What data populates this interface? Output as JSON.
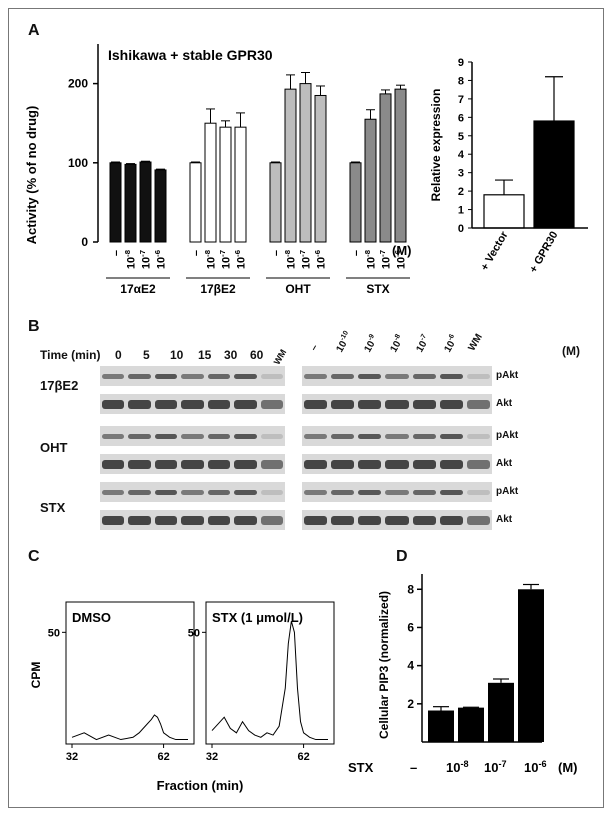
{
  "panelA": {
    "letter": "A",
    "title": "Ishikawa + stable GPR30",
    "ylabel": "Activity (% of no drug)",
    "yticks": [
      "0",
      "100",
      "200"
    ],
    "unit": "(M)",
    "xticks": [
      "–",
      "10-8",
      "10-7",
      "10-6"
    ],
    "inset": {
      "ylabel": "Relative expression",
      "yticks": [
        "0",
        "1",
        "2",
        "3",
        "4",
        "5",
        "6",
        "7",
        "8",
        "9"
      ],
      "categories": [
        "+ Vector",
        "+ GPR30"
      ]
    }
  },
  "panelB": {
    "letter": "B",
    "time_label": "Time (min)",
    "times": [
      "0",
      "5",
      "10",
      "15",
      "30",
      "60",
      "WM"
    ],
    "conc_labels": [
      "–",
      "10-10",
      "10-9",
      "10-8",
      "10-7",
      "10-6",
      "WM"
    ],
    "unit": "(M)",
    "rows": [
      "17βE2",
      "OHT",
      "STX"
    ],
    "band_labels": [
      "pAkt",
      "Akt"
    ]
  },
  "panelC": {
    "letter": "C",
    "ylabel": "CPM",
    "xlabel": "Fraction (min)",
    "left_title": "DMSO",
    "right_title": "STX (1 μmol/L)",
    "yticks": [
      "50"
    ],
    "xticks": [
      "32",
      "62"
    ]
  },
  "panelD": {
    "letter": "D",
    "ylabel": "Cellular PIP3 (normalized)",
    "yticks": [
      "2",
      "4",
      "6",
      "8"
    ],
    "row_label": "STX",
    "categories": [
      "–",
      "10-8",
      "10-7",
      "10-6"
    ],
    "unit": "(M)"
  },
  "chart_data": [
    {
      "type": "bar",
      "title": "Ishikawa + stable GPR30",
      "ylabel": "Activity (% of no drug)",
      "ylim": [
        0,
        250
      ],
      "groups": [
        {
          "name": "17αE2",
          "color": "#111111",
          "values": [
            100,
            98,
            101,
            91
          ],
          "errors": [
            1,
            1,
            1,
            1
          ]
        },
        {
          "name": "17βE2",
          "color": "#ffffff",
          "values": [
            100,
            150,
            145,
            145
          ],
          "errors": [
            1,
            18,
            8,
            18
          ]
        },
        {
          "name": "OHT",
          "color": "#bdbdbd",
          "values": [
            100,
            193,
            200,
            185
          ],
          "errors": [
            1,
            18,
            14,
            12
          ]
        },
        {
          "name": "STX",
          "color": "#8a8a8a",
          "values": [
            100,
            155,
            187,
            193
          ],
          "errors": [
            1,
            12,
            5,
            5
          ]
        }
      ],
      "categories": [
        "–",
        "10-8",
        "10-7",
        "10-6"
      ]
    },
    {
      "type": "bar",
      "ylabel": "Relative expression",
      "ylim": [
        0,
        9
      ],
      "categories": [
        "+ Vector",
        "+ GPR30"
      ],
      "values": [
        1.8,
        5.8
      ],
      "errors": [
        0.8,
        2.4
      ],
      "colors": [
        "#ffffff",
        "#000000"
      ]
    },
    {
      "type": "bar",
      "ylabel": "Cellular PIP3 (normalized)",
      "ylim": [
        0,
        8.8
      ],
      "categories": [
        "–",
        "10-8",
        "10-7",
        "10-6"
      ],
      "values": [
        1.65,
        1.8,
        3.1,
        8.0
      ],
      "errors": [
        0.2,
        0.02,
        0.2,
        0.25
      ]
    },
    {
      "type": "line",
      "ylabel": "CPM",
      "xlabel": "Fraction (min)",
      "series": [
        {
          "name": "DMSO",
          "x": [
            32,
            36,
            40,
            44,
            48,
            52,
            54,
            56,
            58,
            59,
            60,
            61,
            62,
            64,
            66,
            70
          ],
          "y": [
            3,
            5,
            2,
            4,
            2,
            3,
            5,
            8,
            11,
            13,
            12,
            9,
            5,
            3,
            2,
            2
          ]
        },
        {
          "name": "STX (1 μmol/L)",
          "x": [
            32,
            34,
            36,
            38,
            40,
            42,
            44,
            46,
            48,
            50,
            52,
            54,
            56,
            57,
            58,
            59,
            60,
            61,
            62,
            64,
            66,
            70
          ],
          "y": [
            6,
            9,
            12,
            7,
            5,
            10,
            6,
            4,
            3,
            5,
            4,
            8,
            25,
            45,
            55,
            50,
            25,
            10,
            5,
            3,
            2,
            2
          ]
        }
      ]
    }
  ]
}
